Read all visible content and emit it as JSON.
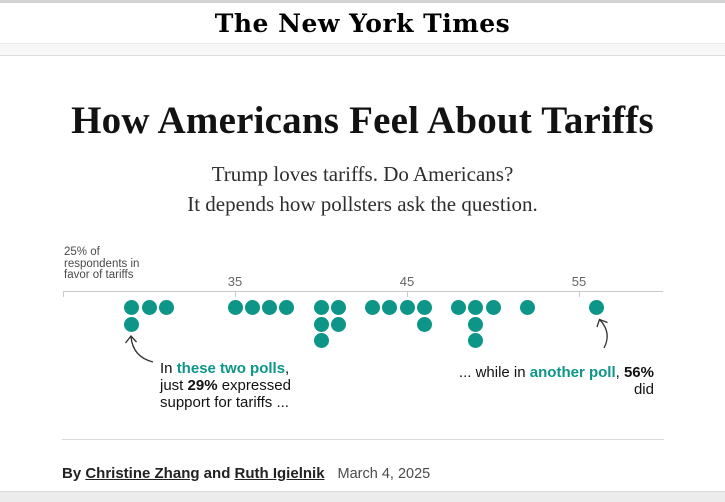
{
  "header": {
    "logo": "The New York Times"
  },
  "article": {
    "headline": "How Americans Feel About Tariffs",
    "subtitle_line1": "Trump loves tariffs. Do Americans?",
    "subtitle_line2": "It depends how pollsters ask the question.",
    "byline": {
      "by": "By ",
      "author1": "Christine Zhang",
      "and": " and ",
      "author2": "Ruth Igielnik",
      "date": "March 4, 2025"
    }
  },
  "colors": {
    "teal": "#0d9688",
    "axis": "#c9c9c9",
    "text_dark": "#121212"
  },
  "chart_data": {
    "type": "scatter",
    "subtype": "dot-strip-plot",
    "title": "",
    "xlabel": "Percent of respondents in favor of tariffs",
    "ylabel": "",
    "axis": {
      "min": 25,
      "max": 60,
      "ticks": [
        {
          "value": 25,
          "label": ""
        },
        {
          "value": 35,
          "label": "35"
        },
        {
          "value": 45,
          "label": "45"
        },
        {
          "value": 55,
          "label": "55"
        }
      ]
    },
    "axis_label_lines": [
      "25% of",
      "respondents in",
      "favor of tariffs"
    ],
    "polls": [
      {
        "value": 29,
        "count": 2
      },
      {
        "value": 30,
        "count": 1
      },
      {
        "value": 31,
        "count": 1
      },
      {
        "value": 35,
        "count": 1
      },
      {
        "value": 36,
        "count": 1
      },
      {
        "value": 37,
        "count": 1
      },
      {
        "value": 38,
        "count": 1
      },
      {
        "value": 40,
        "count": 3
      },
      {
        "value": 41,
        "count": 2
      },
      {
        "value": 43,
        "count": 1
      },
      {
        "value": 44,
        "count": 1
      },
      {
        "value": 45,
        "count": 1
      },
      {
        "value": 46,
        "count": 2
      },
      {
        "value": 48,
        "count": 1
      },
      {
        "value": 49,
        "count": 3
      },
      {
        "value": 50,
        "count": 1
      },
      {
        "value": 52,
        "count": 1
      },
      {
        "value": 56,
        "count": 1
      }
    ],
    "annotations": [
      {
        "id": "ann-left",
        "lines": [
          [
            {
              "t": "In ",
              "s": "r"
            },
            {
              "t": "these two polls",
              "s": "tb"
            },
            {
              "t": ",",
              "s": "r"
            }
          ],
          [
            {
              "t": "just ",
              "s": "r"
            },
            {
              "t": "29%",
              "s": "b"
            },
            {
              "t": " expressed",
              "s": "r"
            }
          ],
          [
            {
              "t": "support for tariffs ...",
              "s": "r"
            }
          ]
        ]
      },
      {
        "id": "ann-right",
        "lines": [
          [
            {
              "t": "... while in ",
              "s": "r"
            },
            {
              "t": "another poll",
              "s": "tb"
            },
            {
              "t": ", ",
              "s": "r"
            },
            {
              "t": "56%",
              "s": "b"
            }
          ],
          [
            {
              "t": "did",
              "s": "r"
            }
          ]
        ]
      }
    ]
  }
}
